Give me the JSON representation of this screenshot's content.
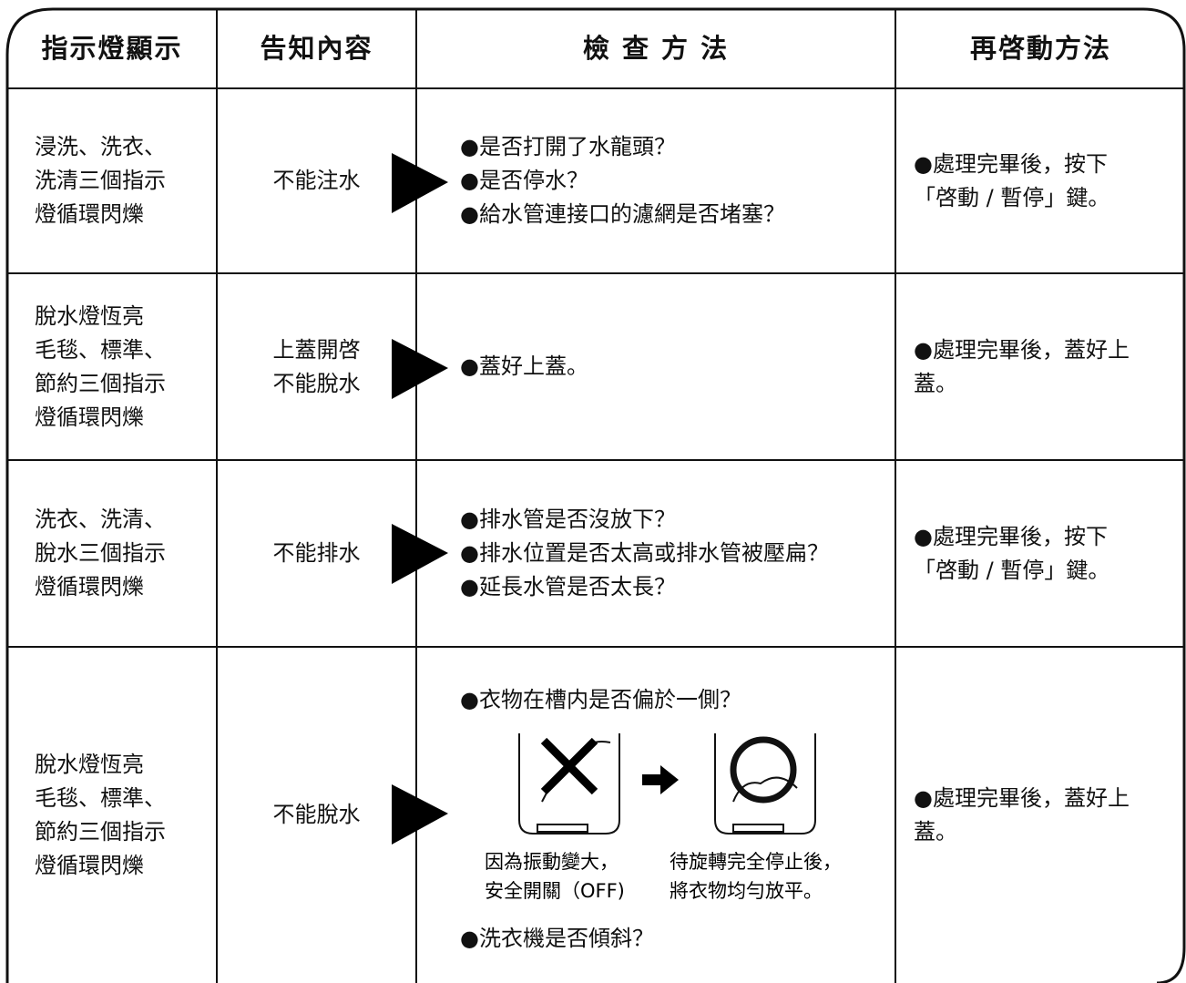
{
  "table": {
    "header": [
      "指示燈顯示",
      "告知內容",
      "檢 查 方 法",
      "再啓動方法"
    ],
    "rows": [
      {
        "indicator": [
          "浸洗、洗衣、",
          "洗清三個指示",
          "燈循環閃爍"
        ],
        "notice": [
          "不能注水"
        ],
        "check": [
          "●是否打開了水龍頭？",
          "●是否停水？",
          "●給水管連接口的濾網是否堵塞？"
        ],
        "restart": [
          "●處理完畢後，按下",
          "「啓動 / 暫停」鍵。"
        ]
      },
      {
        "indicator": [
          "脫水燈恆亮",
          "毛毯、標準、",
          "節約三個指示",
          "燈循環閃爍"
        ],
        "notice": [
          "上蓋開啓",
          "不能脫水"
        ],
        "check": [
          "●蓋好上蓋。"
        ],
        "restart": [
          "●處理完畢後，蓋好上",
          "蓋。"
        ]
      },
      {
        "indicator": [
          "洗衣、洗清、",
          "脫水三個指示",
          "燈循環閃爍"
        ],
        "notice": [
          "不能排水"
        ],
        "check": [
          "●排水管是否沒放下？",
          "●排水位置是否太高或排水管被壓扁？",
          "●延長水管是否太長？"
        ],
        "restart": [
          "●處理完畢後，按下",
          "「啓動 / 暫停」鍵。"
        ]
      },
      {
        "indicator": [
          "脫水燈恆亮",
          "毛毯、標準、",
          "節約三個指示",
          "燈循環閃爍"
        ],
        "notice": [
          "不能脫水"
        ],
        "check": [
          "●衣物在槽内是否偏於一側？"
        ],
        "figure_captions": [
          [
            "因為振動變大，",
            "安全開關（OFF)"
          ],
          [
            "待旋轉完全停止後，",
            "將衣物均勻放平。"
          ]
        ],
        "check_after": [
          "●洗衣機是否傾斜？"
        ],
        "restart": [
          "●處理完畢後，蓋好上",
          "蓋。"
        ]
      }
    ]
  }
}
